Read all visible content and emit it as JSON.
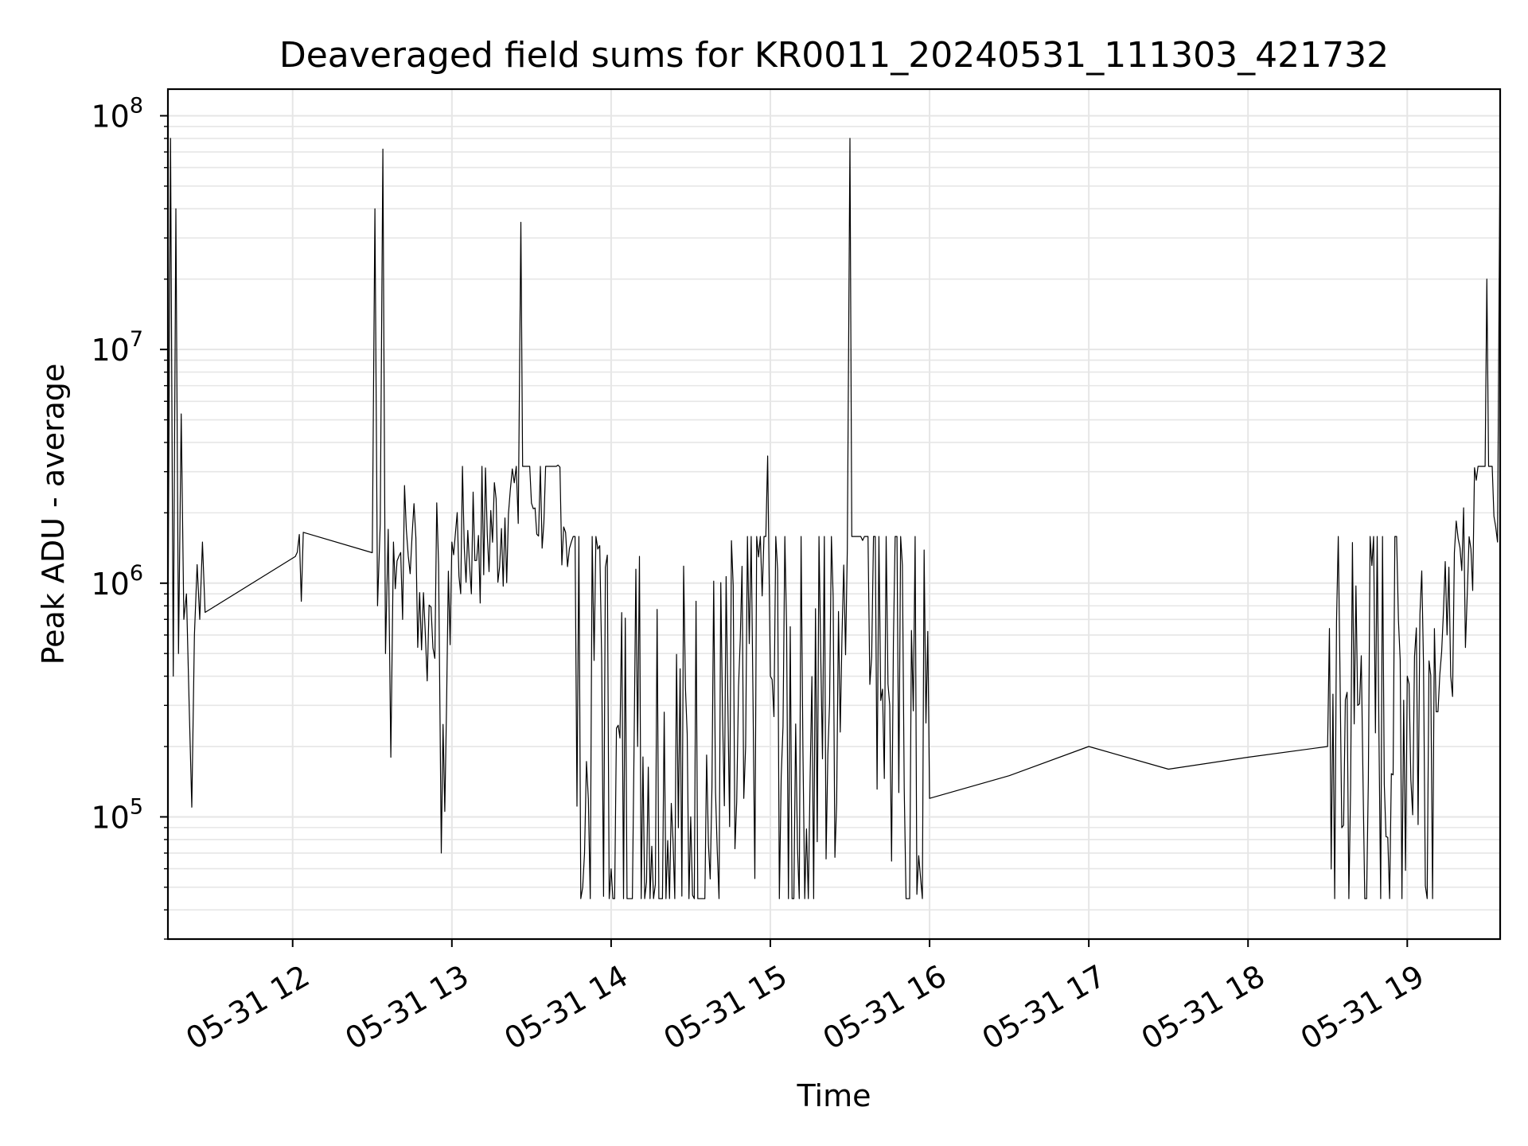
{
  "chart_data": {
    "type": "line",
    "title": "Deaveraged field sums for KR0011_20240531_111303_421732",
    "xlabel": "Time",
    "ylabel": "Peak ADU - average",
    "yscale": "log",
    "xlim": [
      "2024-05-31 11:13",
      "2024-05-31 19:35"
    ],
    "ylim": [
      30000,
      130000000
    ],
    "grid": true,
    "grid_minor": true,
    "legend": "none",
    "line_color": "#000000",
    "grid_color": "#e6e6e6",
    "x_ticks": [
      {
        "value": "2024-05-31 12:00",
        "label": "05-31 12"
      },
      {
        "value": "2024-05-31 13:00",
        "label": "05-31 13"
      },
      {
        "value": "2024-05-31 14:00",
        "label": "05-31 14"
      },
      {
        "value": "2024-05-31 15:00",
        "label": "05-31 15"
      },
      {
        "value": "2024-05-31 16:00",
        "label": "05-31 16"
      },
      {
        "value": "2024-05-31 17:00",
        "label": "05-31 17"
      },
      {
        "value": "2024-05-31 18:00",
        "label": "05-31 18"
      },
      {
        "value": "2024-05-31 19:00",
        "label": "05-31 19"
      }
    ],
    "y_ticks": [
      {
        "value": 100000,
        "base": "10",
        "exp": "5"
      },
      {
        "value": 1000000,
        "base": "10",
        "exp": "6"
      },
      {
        "value": 10000000,
        "base": "10",
        "exp": "7"
      },
      {
        "value": 100000000,
        "base": "10",
        "exp": "8"
      }
    ],
    "series": [
      {
        "x": [
          "2024-05-31 11:13",
          "2024-05-31 11:14",
          "2024-05-31 11:15",
          "2024-05-31 11:16",
          "2024-05-31 11:17",
          "2024-05-31 11:18",
          "2024-05-31 11:19",
          "2024-05-31 11:20",
          "2024-05-31 11:21",
          "2024-05-31 11:22",
          "2024-05-31 11:23",
          "2024-05-31 11:24",
          "2024-05-31 11:25",
          "2024-05-31 11:26",
          "2024-05-31 11:27",
          "2024-05-31 12:01",
          "2024-05-31 12:04",
          "2024-05-31 12:30",
          "2024-05-31 12:31",
          "2024-05-31 12:32",
          "2024-05-31 12:33",
          "2024-05-31 12:34",
          "2024-05-31 12:35",
          "2024-05-31 12:36",
          "2024-05-31 12:37",
          "2024-05-31 12:38",
          "2024-05-31 12:40",
          "2024-05-31 12:45",
          "2024-05-31 12:50",
          "2024-05-31 12:55",
          "2024-05-31 12:56",
          "2024-05-31 13:00",
          "2024-05-31 13:10",
          "2024-05-31 13:20",
          "2024-05-31 13:22",
          "2024-05-31 13:25",
          "2024-05-31 13:26",
          "2024-05-31 13:30",
          "2024-05-31 13:40",
          "2024-05-31 13:45",
          "2024-05-31 13:50",
          "2024-05-31 13:55",
          "2024-05-31 14:00",
          "2024-05-31 14:10",
          "2024-05-31 14:30",
          "2024-05-31 14:50",
          "2024-05-31 14:59",
          "2024-05-31 15:00",
          "2024-05-31 15:15",
          "2024-05-31 15:29",
          "2024-05-31 15:30",
          "2024-05-31 15:45",
          "2024-05-31 16:00",
          "2024-05-31 16:30",
          "2024-05-31 17:00",
          "2024-05-31 17:30",
          "2024-05-31 18:00",
          "2024-05-31 18:30",
          "2024-05-31 18:40",
          "2024-05-31 19:00",
          "2024-05-31 19:15",
          "2024-05-31 19:24",
          "2024-05-31 19:30",
          "2024-05-31 19:34",
          "2024-05-31 19:35"
        ],
        "y": [
          600000,
          80000000,
          400000,
          40000000,
          500000,
          5300000,
          700000,
          900000,
          300000,
          110000,
          600000,
          1200000,
          700000,
          1500000,
          750000,
          1300000,
          1650000,
          1350000,
          40000000,
          800000,
          1800000,
          72000000,
          500000,
          1700000,
          180000,
          1500000,
          1300000,
          1600000,
          600000,
          1200000,
          70000,
          1500000,
          1600000,
          1900000,
          2500000,
          1800000,
          35000000,
          2200000,
          3200000,
          1500000,
          70000,
          1400000,
          60000,
          200000,
          100000,
          120000,
          3500000,
          400000,
          150000,
          1400000,
          80000000,
          300000,
          120000,
          150000,
          200000,
          160000,
          180000,
          200000,
          250000,
          400000,
          600000,
          1400000,
          20000000,
          1500000,
          85000000
        ]
      }
    ]
  }
}
